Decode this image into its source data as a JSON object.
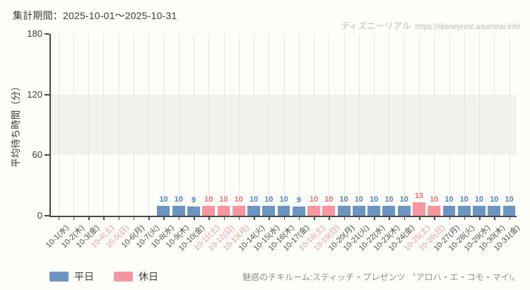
{
  "header": {
    "period_label": "集計期間：2025-10-01～2025-10-31"
  },
  "watermark": {
    "site_name": "ディズニーリアル",
    "url": "https://disneyreal.asumirai.info"
  },
  "chart_data": {
    "type": "bar",
    "title": "",
    "xlabel": "",
    "ylabel": "平均待ち時間（分）",
    "ylim": [
      0,
      180
    ],
    "y_ticks": [
      0,
      60,
      120,
      180
    ],
    "grid": "vertical-only",
    "highlight_band": {
      "from": 60,
      "to": 120
    },
    "legend_position": "bottom-left",
    "categories": [
      "10-1(水)",
      "10-2(木)",
      "10-3(金)",
      "10-4(土)",
      "10-5(日)",
      "10-6(月)",
      "10-7(火)",
      "10-8(水)",
      "10-9(木)",
      "10-10(金)",
      "10-11(土)",
      "10-12(日)",
      "10-13(月)",
      "10-14(火)",
      "10-15(水)",
      "10-16(木)",
      "10-17(金)",
      "10-18(土)",
      "10-19(日)",
      "10-20(月)",
      "10-21(火)",
      "10-22(水)",
      "10-23(木)",
      "10-24(金)",
      "10-25(土)",
      "10-26(日)",
      "10-27(月)",
      "10-28(火)",
      "10-29(水)",
      "10-30(木)",
      "10-31(金)"
    ],
    "day_types": [
      "weekday",
      "weekday",
      "weekday",
      "holiday",
      "holiday",
      "weekday",
      "weekday",
      "weekday",
      "weekday",
      "weekday",
      "holiday",
      "holiday",
      "holiday",
      "weekday",
      "weekday",
      "weekday",
      "weekday",
      "holiday",
      "holiday",
      "weekday",
      "weekday",
      "weekday",
      "weekday",
      "weekday",
      "holiday",
      "holiday",
      "weekday",
      "weekday",
      "weekday",
      "weekday",
      "weekday"
    ],
    "values": [
      null,
      null,
      null,
      null,
      null,
      null,
      null,
      10,
      10,
      9,
      10,
      10,
      10,
      10,
      10,
      10,
      9,
      10,
      10,
      10,
      10,
      10,
      10,
      10,
      13,
      10,
      10,
      10,
      10,
      10,
      10
    ]
  },
  "legend": {
    "items": [
      {
        "label": "平日",
        "type": "weekday"
      },
      {
        "label": "休日",
        "type": "holiday"
      }
    ]
  },
  "footer": {
    "attraction_name": "魅惑のチキルーム:スティッチ・プレゼンツ 〝アロハ・エ・コモ・マイ!〟"
  },
  "colors": {
    "weekday_bar": "#6b94c0",
    "holiday_bar": "#f7969d",
    "weekday_value_label": "#4e87c1",
    "holiday_value_label": "#ee737b",
    "weekday_axis_label": "#4d4d4d",
    "holiday_axis_label": "#f29b9b",
    "axis": "#4a4a4a",
    "gridline": "#e6e7e3",
    "band": "#f1f2ee",
    "background": "#fdfefa",
    "watermark": "#bdbdbd",
    "footer_text": "#8f8f8f"
  }
}
